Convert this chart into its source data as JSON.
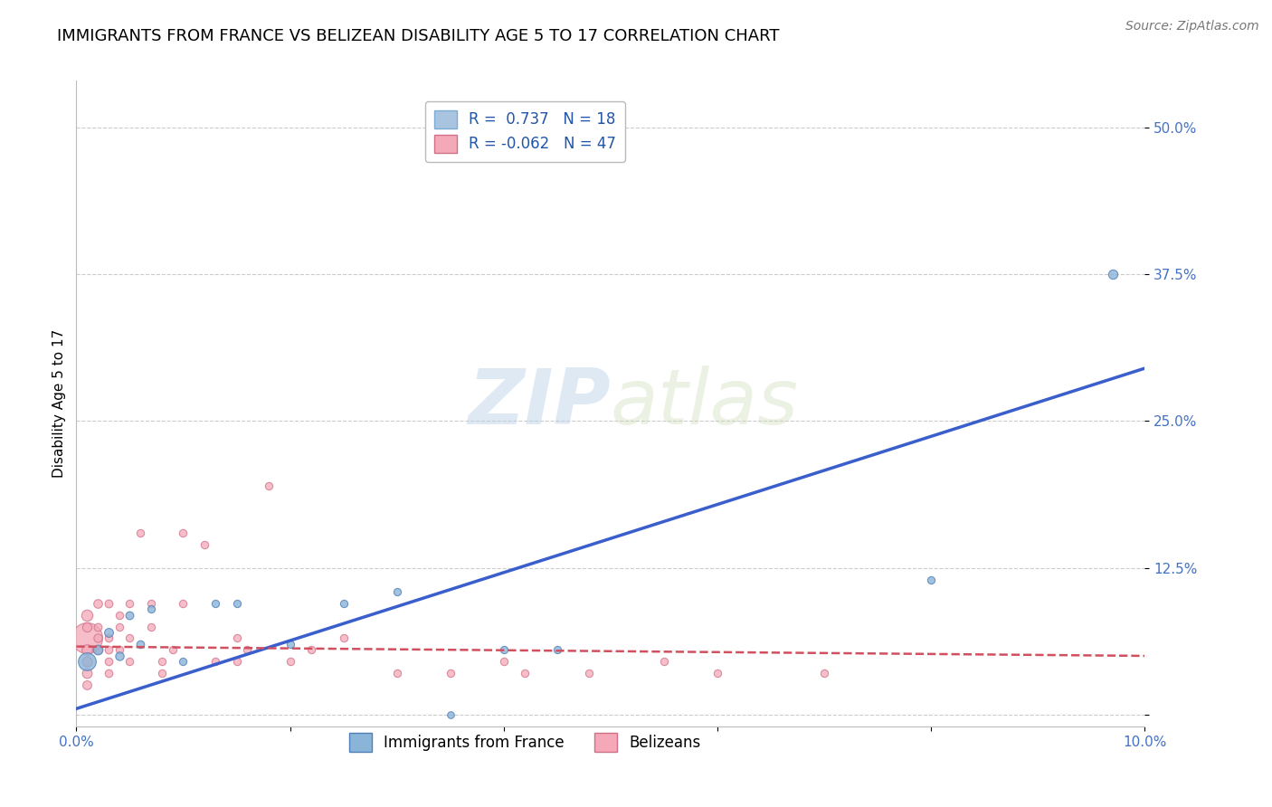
{
  "title": "IMMIGRANTS FROM FRANCE VS BELIZEAN DISABILITY AGE 5 TO 17 CORRELATION CHART",
  "source": "Source: ZipAtlas.com",
  "xlabel": "",
  "ylabel": "Disability Age 5 to 17",
  "xlim": [
    0.0,
    0.1
  ],
  "ylim": [
    -0.01,
    0.54
  ],
  "xticks": [
    0.0,
    0.02,
    0.04,
    0.06,
    0.08,
    0.1
  ],
  "xticklabels": [
    "0.0%",
    "",
    "",
    "",
    "",
    "10.0%"
  ],
  "yticks": [
    0.0,
    0.125,
    0.25,
    0.375,
    0.5
  ],
  "yticklabels": [
    "",
    "12.5%",
    "25.0%",
    "37.5%",
    "50.0%"
  ],
  "watermark_zip": "ZIP",
  "watermark_atlas": "atlas",
  "legend_items": [
    {
      "label": "R =  0.737   N = 18",
      "color": "#a8c4e0"
    },
    {
      "label": "R = -0.062   N = 47",
      "color": "#f4a9b8"
    }
  ],
  "france_points": [
    [
      0.001,
      0.045
    ],
    [
      0.002,
      0.055
    ],
    [
      0.003,
      0.07
    ],
    [
      0.004,
      0.05
    ],
    [
      0.005,
      0.085
    ],
    [
      0.006,
      0.06
    ],
    [
      0.007,
      0.09
    ],
    [
      0.01,
      0.045
    ],
    [
      0.013,
      0.095
    ],
    [
      0.015,
      0.095
    ],
    [
      0.02,
      0.06
    ],
    [
      0.025,
      0.095
    ],
    [
      0.03,
      0.105
    ],
    [
      0.035,
      0.0
    ],
    [
      0.04,
      0.055
    ],
    [
      0.045,
      0.055
    ],
    [
      0.08,
      0.115
    ],
    [
      0.097,
      0.375
    ]
  ],
  "france_sizes": [
    200,
    60,
    50,
    45,
    40,
    38,
    35,
    35,
    35,
    35,
    35,
    35,
    35,
    30,
    35,
    35,
    35,
    55
  ],
  "belize_points": [
    [
      0.001,
      0.065
    ],
    [
      0.001,
      0.085
    ],
    [
      0.001,
      0.055
    ],
    [
      0.001,
      0.045
    ],
    [
      0.001,
      0.035
    ],
    [
      0.001,
      0.075
    ],
    [
      0.001,
      0.025
    ],
    [
      0.002,
      0.095
    ],
    [
      0.002,
      0.065
    ],
    [
      0.002,
      0.055
    ],
    [
      0.002,
      0.075
    ],
    [
      0.003,
      0.095
    ],
    [
      0.003,
      0.055
    ],
    [
      0.003,
      0.045
    ],
    [
      0.003,
      0.035
    ],
    [
      0.003,
      0.065
    ],
    [
      0.004,
      0.075
    ],
    [
      0.004,
      0.085
    ],
    [
      0.004,
      0.055
    ],
    [
      0.005,
      0.095
    ],
    [
      0.005,
      0.065
    ],
    [
      0.005,
      0.045
    ],
    [
      0.006,
      0.155
    ],
    [
      0.007,
      0.095
    ],
    [
      0.007,
      0.075
    ],
    [
      0.008,
      0.045
    ],
    [
      0.008,
      0.035
    ],
    [
      0.009,
      0.055
    ],
    [
      0.01,
      0.155
    ],
    [
      0.01,
      0.095
    ],
    [
      0.012,
      0.145
    ],
    [
      0.013,
      0.045
    ],
    [
      0.015,
      0.065
    ],
    [
      0.015,
      0.045
    ],
    [
      0.016,
      0.055
    ],
    [
      0.018,
      0.195
    ],
    [
      0.02,
      0.045
    ],
    [
      0.022,
      0.055
    ],
    [
      0.025,
      0.065
    ],
    [
      0.03,
      0.035
    ],
    [
      0.035,
      0.035
    ],
    [
      0.04,
      0.045
    ],
    [
      0.042,
      0.035
    ],
    [
      0.048,
      0.035
    ],
    [
      0.055,
      0.045
    ],
    [
      0.06,
      0.035
    ],
    [
      0.07,
      0.035
    ]
  ],
  "belize_sizes": [
    600,
    80,
    70,
    65,
    60,
    55,
    50,
    48,
    45,
    42,
    40,
    40,
    38,
    38,
    38,
    38,
    36,
    36,
    36,
    36,
    36,
    36,
    36,
    36,
    36,
    36,
    36,
    36,
    36,
    36,
    36,
    36,
    36,
    36,
    36,
    36,
    36,
    36,
    36,
    36,
    36,
    36,
    36,
    36,
    36,
    36,
    36
  ],
  "france_line_x": [
    0.0,
    0.1
  ],
  "france_line_y": [
    0.005,
    0.295
  ],
  "belize_line_x": [
    0.0,
    0.1
  ],
  "belize_line_y": [
    0.058,
    0.05
  ],
  "france_line_color": "#3a5fcd",
  "belize_line_color": "#d05060",
  "france_color": "#8ab4d8",
  "france_edge": "#5080b8",
  "belize_color": "#f4a8b8",
  "belize_edge": "#d07088",
  "grid_color": "#cccccc",
  "background_color": "#ffffff",
  "title_fontsize": 13,
  "label_fontsize": 11,
  "tick_fontsize": 11,
  "legend_fontsize": 12,
  "source_fontsize": 10
}
